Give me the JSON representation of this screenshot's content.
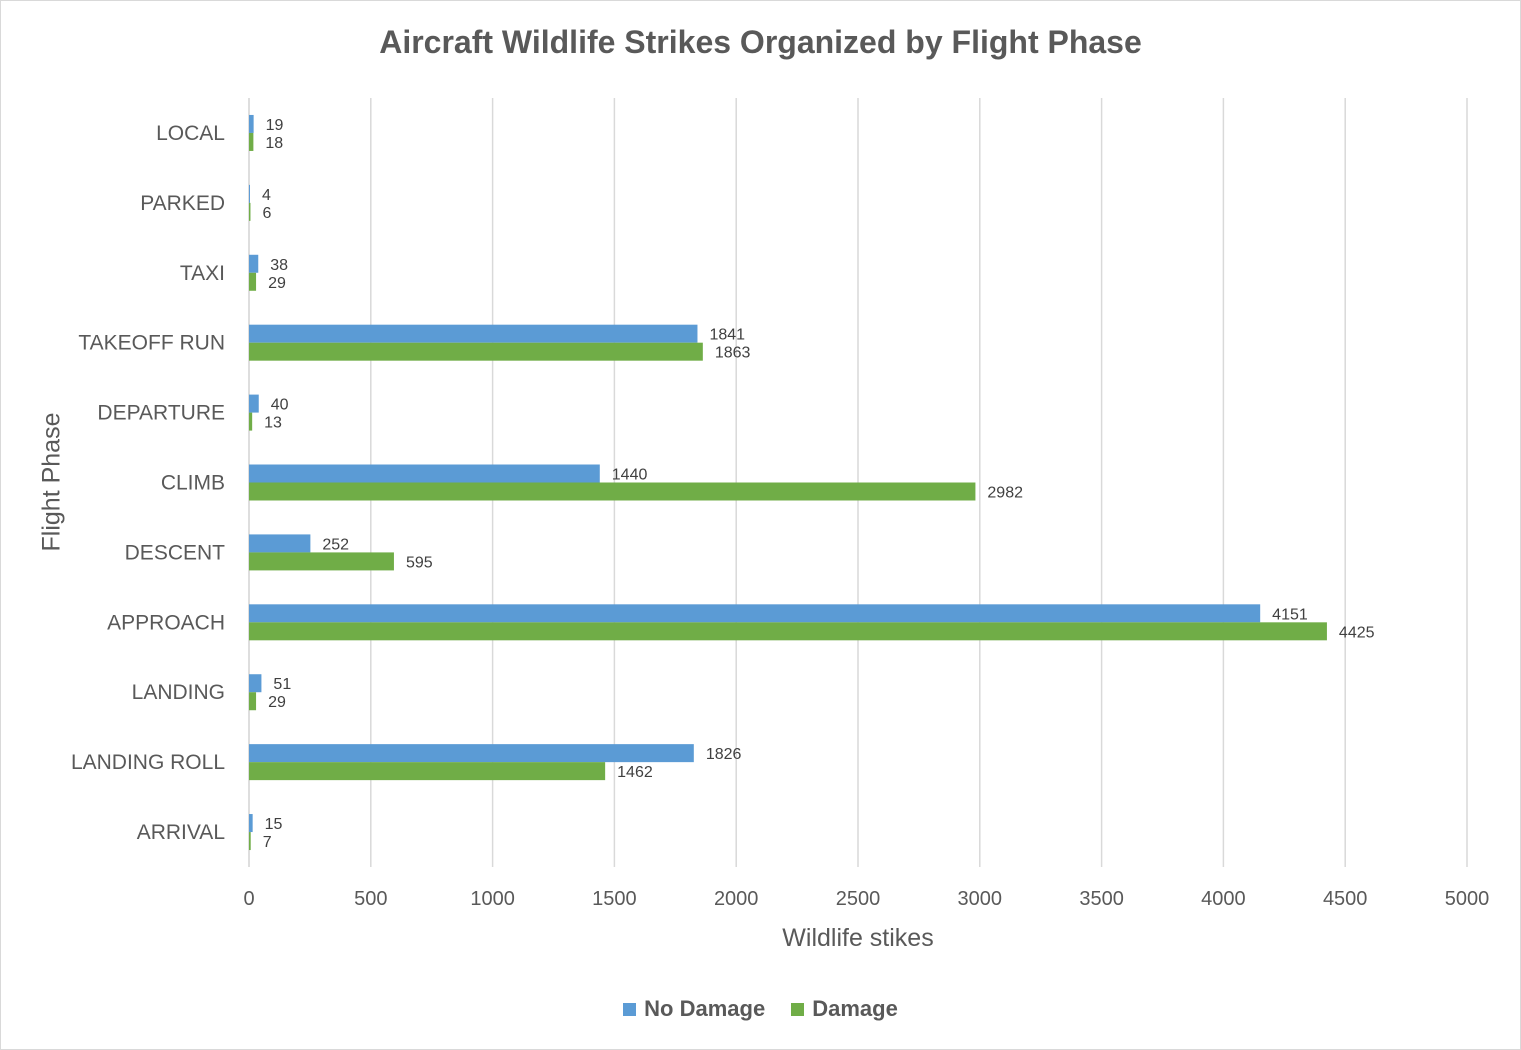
{
  "chart_data": {
    "type": "bar",
    "orientation": "horizontal",
    "title": "Aircraft Wildlife Strikes Organized by Flight Phase",
    "xlabel": "Wildlife stikes",
    "ylabel": "Flight Phase",
    "xlim": [
      0,
      5000
    ],
    "xticks": [
      0,
      500,
      1000,
      1500,
      2000,
      2500,
      3000,
      3500,
      4000,
      4500,
      5000
    ],
    "grid": true,
    "legend_position": "bottom",
    "categories": [
      "LOCAL",
      "PARKED",
      "TAXI",
      "TAKEOFF RUN",
      "DEPARTURE",
      "CLIMB",
      "DESCENT",
      "APPROACH",
      "LANDING",
      "LANDING ROLL",
      "ARRIVAL"
    ],
    "series": [
      {
        "name": "No Damage",
        "color": "#5b9bd5",
        "values": [
          19,
          4,
          38,
          1841,
          40,
          1440,
          252,
          4151,
          51,
          1826,
          15
        ]
      },
      {
        "name": "Damage",
        "color": "#70ad47",
        "values": [
          18,
          6,
          29,
          1863,
          13,
          2982,
          595,
          4425,
          29,
          1462,
          7
        ]
      }
    ]
  }
}
